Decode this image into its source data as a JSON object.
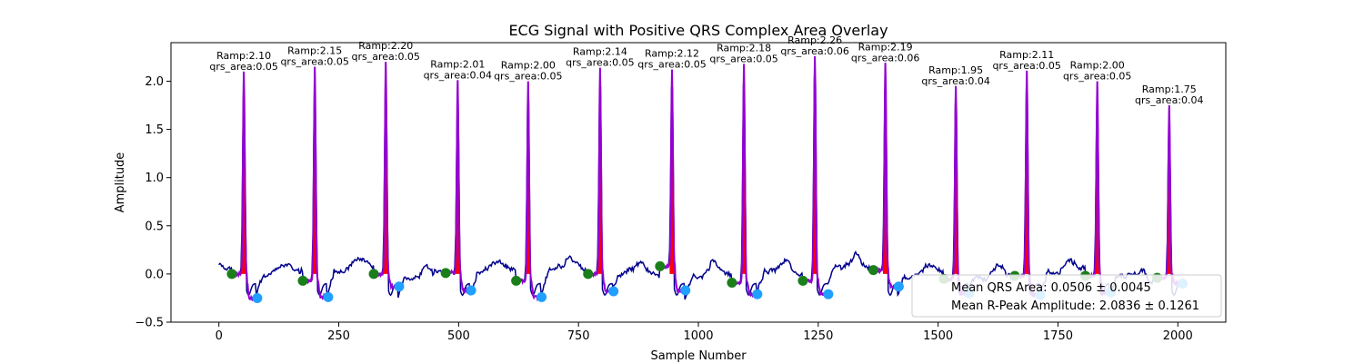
{
  "chart_data": {
    "type": "line",
    "title": "ECG Signal with Positive QRS Complex Area Overlay",
    "xlabel": "Sample Number",
    "ylabel": "Amplitude",
    "xlim": [
      -100,
      2100
    ],
    "ylim": [
      -0.5,
      2.4
    ],
    "xticks": [
      0,
      250,
      500,
      750,
      1000,
      1250,
      1500,
      1750,
      2000
    ],
    "xtick_labels": [
      "0",
      "250",
      "500",
      "750",
      "1000",
      "1250",
      "1500",
      "1750",
      "2000"
    ],
    "yticks": [
      -0.5,
      0.0,
      0.5,
      1.0,
      1.5,
      2.0
    ],
    "ytick_labels": [
      "−0.5",
      "0.0",
      "0.5",
      "1.0",
      "1.5",
      "2.0"
    ],
    "grid": false,
    "colors": {
      "signal": "#00008b",
      "qrs_segment": "#9400d3",
      "qrs_fill": "#ff0000",
      "q_marker": "#1a7f1a",
      "s_marker": "#1f9fff"
    },
    "beats": [
      {
        "r_sample": 52,
        "r_amp": 2.1,
        "qrs_area": 0.05,
        "q_sample": 27,
        "q_amp": 0.0,
        "s_sample": 80,
        "s_amp": -0.25
      },
      {
        "r_sample": 200,
        "r_amp": 2.15,
        "qrs_area": 0.05,
        "q_sample": 175,
        "q_amp": -0.07,
        "s_sample": 228,
        "s_amp": -0.24
      },
      {
        "r_sample": 348,
        "r_amp": 2.2,
        "qrs_area": 0.05,
        "q_sample": 323,
        "q_amp": 0.0,
        "s_sample": 376,
        "s_amp": -0.13
      },
      {
        "r_sample": 498,
        "r_amp": 2.01,
        "qrs_area": 0.04,
        "q_sample": 473,
        "q_amp": 0.01,
        "s_sample": 526,
        "s_amp": -0.17
      },
      {
        "r_sample": 645,
        "r_amp": 2.0,
        "qrs_area": 0.05,
        "q_sample": 620,
        "q_amp": -0.07,
        "s_sample": 673,
        "s_amp": -0.24
      },
      {
        "r_sample": 795,
        "r_amp": 2.14,
        "qrs_area": 0.05,
        "q_sample": 770,
        "q_amp": 0.0,
        "s_sample": 823,
        "s_amp": -0.18
      },
      {
        "r_sample": 945,
        "r_amp": 2.12,
        "qrs_area": 0.05,
        "q_sample": 920,
        "q_amp": 0.08,
        "s_sample": 973,
        "s_amp": -0.17
      },
      {
        "r_sample": 1095,
        "r_amp": 2.18,
        "qrs_area": 0.05,
        "q_sample": 1070,
        "q_amp": -0.09,
        "s_sample": 1123,
        "s_amp": -0.21
      },
      {
        "r_sample": 1243,
        "r_amp": 2.26,
        "qrs_area": 0.06,
        "q_sample": 1218,
        "q_amp": -0.07,
        "s_sample": 1271,
        "s_amp": -0.21
      },
      {
        "r_sample": 1390,
        "r_amp": 2.19,
        "qrs_area": 0.06,
        "q_sample": 1365,
        "q_amp": 0.04,
        "s_sample": 1418,
        "s_amp": -0.13
      },
      {
        "r_sample": 1537,
        "r_amp": 1.95,
        "qrs_area": 0.04,
        "q_sample": 1512,
        "q_amp": -0.05,
        "s_sample": 1565,
        "s_amp": -0.2
      },
      {
        "r_sample": 1685,
        "r_amp": 2.11,
        "qrs_area": 0.05,
        "q_sample": 1660,
        "q_amp": -0.02,
        "s_sample": 1713,
        "s_amp": -0.22
      },
      {
        "r_sample": 1832,
        "r_amp": 2.0,
        "qrs_area": 0.05,
        "q_sample": 1807,
        "q_amp": -0.02,
        "s_sample": 1860,
        "s_amp": -0.19
      },
      {
        "r_sample": 1982,
        "r_amp": 1.75,
        "qrs_area": 0.04,
        "q_sample": 1957,
        "q_amp": -0.04,
        "s_sample": 2010,
        "s_amp": -0.1
      }
    ],
    "annotation_labels": [
      {
        "line1": "Ramp:2.10",
        "line2": "qrs_area:0.05"
      },
      {
        "line1": "Ramp:2.15",
        "line2": "qrs_area:0.05"
      },
      {
        "line1": "Ramp:2.20",
        "line2": "qrs_area:0.05"
      },
      {
        "line1": "Ramp:2.01",
        "line2": "qrs_area:0.04"
      },
      {
        "line1": "Ramp:2.00",
        "line2": "qrs_area:0.05"
      },
      {
        "line1": "Ramp:2.14",
        "line2": "qrs_area:0.05"
      },
      {
        "line1": "Ramp:2.12",
        "line2": "qrs_area:0.05"
      },
      {
        "line1": "Ramp:2.18",
        "line2": "qrs_area:0.05"
      },
      {
        "line1": "Ramp:2.26",
        "line2": "qrs_area:0.06"
      },
      {
        "line1": "Ramp:2.19",
        "line2": "qrs_area:0.06"
      },
      {
        "line1": "Ramp:1.95",
        "line2": "qrs_area:0.04"
      },
      {
        "line1": "Ramp:2.11",
        "line2": "qrs_area:0.05"
      },
      {
        "line1": "Ramp:2.00",
        "line2": "qrs_area:0.05"
      },
      {
        "line1": "Ramp:1.75",
        "line2": "qrs_area:0.04"
      }
    ],
    "legend": {
      "placement": "lower-right",
      "entries": [
        "Mean QRS Area: 0.0506 ± 0.0045",
        "Mean R-Peak Amplitude: 2.0836 ± 0.1261"
      ]
    }
  }
}
